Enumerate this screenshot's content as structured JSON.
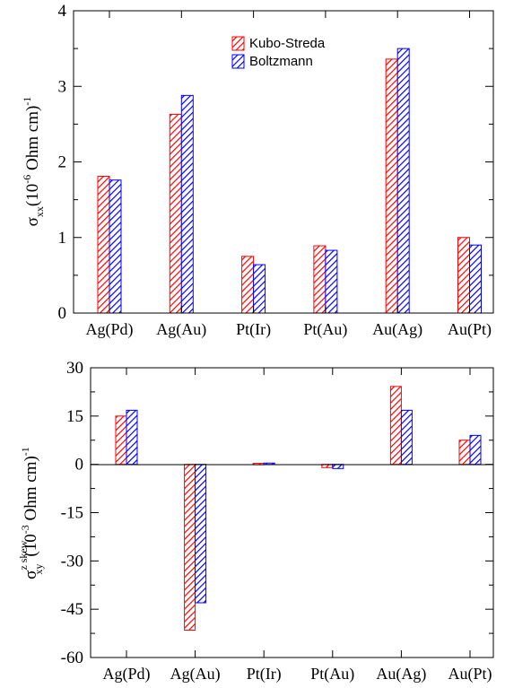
{
  "colors": {
    "kubo": "#ff0000",
    "boltzmann": "#0000ff",
    "axis": "#000000"
  },
  "chart_data": [
    {
      "type": "bar",
      "grid": false,
      "categories": [
        "Ag(Pd)",
        "Ag(Au)",
        "Pt(Ir)",
        "Pt(Au)",
        "Au(Ag)",
        "Au(Pt)"
      ],
      "series": [
        {
          "name": "Kubo-Streda",
          "values": [
            1.81,
            2.63,
            0.75,
            0.89,
            3.36,
            1.0
          ]
        },
        {
          "name": "Boltzmann",
          "values": [
            1.76,
            2.88,
            0.64,
            0.83,
            3.5,
            0.9
          ]
        }
      ],
      "ylim": [
        0,
        4
      ],
      "yticks": [
        "0",
        "1",
        "2",
        "3",
        "4"
      ],
      "ylabel": {
        "symbol": "σ",
        "sub": "xx",
        "unit_prefix": "(10",
        "exp": "-6",
        "unit_mid": " Ohm cm)",
        "unit_exp": "-1"
      },
      "legend": {
        "position": "top-right"
      }
    },
    {
      "type": "bar",
      "grid": false,
      "categories": [
        "Ag(Pd)",
        "Ag(Au)",
        "Pt(Ir)",
        "Pt(Au)",
        "Au(Ag)",
        "Au(Pt)"
      ],
      "series": [
        {
          "name": "Kubo-Streda",
          "values": [
            15.0,
            -51.5,
            0.3,
            -1.0,
            24.2,
            7.5
          ]
        },
        {
          "name": "Boltzmann",
          "values": [
            16.8,
            -43.0,
            0.4,
            -1.3,
            16.8,
            9.0
          ]
        }
      ],
      "ylim": [
        -60,
        30
      ],
      "yticks": [
        "-60",
        "-45",
        "-30",
        "-15",
        "0",
        "15",
        "30"
      ],
      "ylabel": {
        "symbol": "σ",
        "sup": "z skew",
        "sub": "xy",
        "unit_prefix": "(10",
        "exp": "-3",
        "unit_mid": " Ohm cm)",
        "unit_exp": "-1"
      }
    }
  ]
}
